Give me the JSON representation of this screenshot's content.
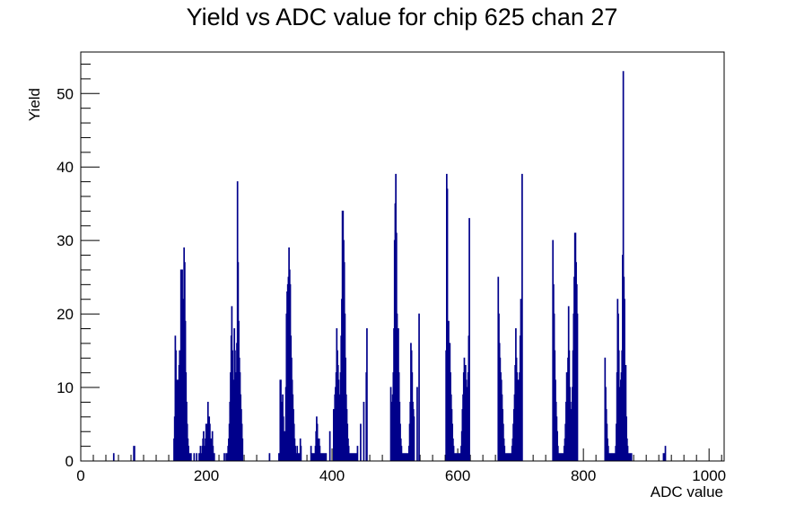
{
  "chart_data": {
    "type": "bar",
    "title": "Yield vs ADC value for chip 625 chan 27",
    "xlabel": "ADC value",
    "ylabel": "Yield",
    "xlim": [
      0,
      1024
    ],
    "ylim": [
      0,
      55.65
    ],
    "x_ticks": [
      0,
      200,
      400,
      600,
      800,
      1000
    ],
    "y_ticks": [
      0,
      10,
      20,
      30,
      40,
      50
    ],
    "grid": false,
    "legend": "none",
    "colors": {
      "series": "#00008b",
      "axis": "#000000",
      "background": "#ffffff"
    },
    "series": [
      {
        "bins_x": [
          52,
          84,
          85,
          148,
          149,
          150,
          151,
          152,
          153,
          154,
          155,
          156,
          157,
          158,
          159,
          160,
          161,
          162,
          163,
          164,
          165,
          166,
          167,
          168,
          169,
          170,
          171,
          172,
          173,
          175,
          180,
          184,
          188,
          190,
          192,
          193,
          194,
          195,
          196,
          197,
          198,
          199,
          200,
          201,
          202,
          203,
          204,
          205,
          206,
          207,
          208,
          209,
          210,
          211,
          212,
          228,
          231,
          233,
          234,
          235,
          236,
          237,
          238,
          239,
          240,
          241,
          242,
          243,
          244,
          245,
          246,
          247,
          248,
          249,
          250,
          251,
          252,
          253,
          254,
          255,
          256,
          257,
          300,
          315,
          316,
          317,
          318,
          319,
          320,
          321,
          322,
          323,
          324,
          325,
          326,
          327,
          328,
          329,
          330,
          331,
          332,
          333,
          334,
          335,
          336,
          337,
          338,
          339,
          340,
          341,
          342,
          343,
          344,
          345,
          346,
          347,
          348,
          349,
          350,
          366,
          367,
          368,
          369,
          370,
          371,
          372,
          373,
          374,
          375,
          376,
          377,
          378,
          379,
          380,
          381,
          382,
          383,
          384,
          385,
          386,
          387,
          388,
          389,
          390,
          396,
          402,
          404,
          405,
          406,
          407,
          408,
          409,
          410,
          411,
          412,
          413,
          414,
          415,
          416,
          417,
          418,
          419,
          420,
          421,
          422,
          423,
          424,
          425,
          426,
          427,
          428,
          429,
          430,
          431,
          432,
          433,
          434,
          435,
          436,
          437,
          438,
          439,
          440,
          445,
          450,
          454,
          455,
          493,
          494,
          495,
          496,
          497,
          498,
          499,
          500,
          501,
          502,
          503,
          504,
          505,
          506,
          507,
          508,
          509,
          510,
          511,
          512,
          513,
          514,
          515,
          516,
          517,
          518,
          519,
          520,
          521,
          522,
          523,
          524,
          525,
          526,
          527,
          528,
          529,
          530,
          535,
          538,
          581,
          582,
          583,
          584,
          585,
          586,
          587,
          588,
          589,
          590,
          591,
          592,
          593,
          594,
          595,
          596,
          597,
          598,
          599,
          600,
          601,
          602,
          603,
          604,
          605,
          606,
          607,
          608,
          609,
          610,
          611,
          612,
          613,
          614,
          615,
          616,
          617,
          618,
          664,
          665,
          666,
          667,
          668,
          669,
          670,
          671,
          672,
          673,
          674,
          675,
          676,
          677,
          678,
          679,
          680,
          681,
          682,
          683,
          684,
          685,
          686,
          687,
          688,
          689,
          690,
          691,
          692,
          693,
          694,
          695,
          696,
          697,
          698,
          699,
          700,
          702,
          751,
          752,
          753,
          754,
          755,
          756,
          757,
          758,
          759,
          760,
          761,
          762,
          763,
          764,
          765,
          766,
          767,
          768,
          769,
          770,
          771,
          772,
          773,
          774,
          775,
          776,
          777,
          778,
          779,
          780,
          781,
          782,
          783,
          784,
          785,
          786,
          787,
          788,
          789,
          790,
          834,
          835,
          836,
          837,
          838,
          839,
          840,
          841,
          842,
          843,
          844,
          845,
          846,
          847,
          848,
          849,
          850,
          851,
          852,
          853,
          854,
          855,
          856,
          857,
          858,
          859,
          860,
          861,
          862,
          863,
          864,
          865,
          866,
          867,
          868,
          869,
          870,
          871,
          872,
          873,
          874,
          875,
          876,
          927,
          928,
          929,
          930,
          931,
          932,
          933,
          934,
          935,
          936,
          937,
          938,
          939,
          940,
          941,
          942,
          943,
          944,
          945,
          946,
          947,
          948,
          949,
          950,
          951,
          952,
          953,
          954,
          955,
          956,
          957,
          958,
          998
        ],
        "values": [
          1,
          2,
          2,
          3,
          6,
          17,
          15,
          11,
          9,
          11,
          10,
          13,
          15,
          14,
          26,
          25,
          26,
          22,
          18,
          29,
          27,
          19,
          12,
          8,
          5,
          3,
          2,
          1,
          1,
          1,
          1,
          1,
          1,
          2,
          1,
          2,
          3,
          4,
          2,
          2,
          3,
          5,
          3,
          5,
          8,
          4,
          6,
          5,
          3,
          2,
          3,
          4,
          2,
          1,
          1,
          1,
          1,
          1,
          2,
          3,
          5,
          8,
          12,
          17,
          21,
          15,
          7,
          11,
          18,
          15,
          9,
          12,
          16,
          38,
          27,
          19,
          14,
          12,
          9,
          7,
          5,
          3,
          1,
          1,
          1,
          11,
          11,
          8,
          7,
          9,
          6,
          4,
          3,
          4,
          10,
          20,
          23,
          24,
          25,
          29,
          26,
          24,
          17,
          14,
          11,
          9,
          7,
          5,
          3,
          2,
          1,
          1,
          2,
          1,
          1,
          1,
          1,
          3,
          2,
          2,
          1,
          1,
          1,
          1,
          1,
          1,
          2,
          4,
          6,
          5,
          3,
          2,
          3,
          2,
          1,
          1,
          1,
          1,
          1,
          1,
          1,
          1,
          1,
          1,
          4,
          7,
          9,
          10,
          12,
          18,
          15,
          13,
          11,
          8,
          9,
          12,
          17,
          22,
          34,
          34,
          30,
          27,
          20,
          14,
          9,
          7,
          5,
          3,
          2,
          1,
          1,
          1,
          1,
          1,
          1,
          1,
          1,
          1,
          1,
          1,
          1,
          1,
          2,
          5,
          8,
          12,
          18,
          10,
          7,
          8,
          9,
          12,
          18,
          30,
          35,
          39,
          31,
          20,
          17,
          18,
          12,
          8,
          5,
          3,
          2,
          1,
          1,
          1,
          1,
          1,
          1,
          1,
          1,
          1,
          1,
          1,
          2,
          5,
          8,
          16,
          15,
          12,
          8,
          7,
          6,
          10,
          20,
          15,
          39,
          37,
          17,
          19,
          14,
          16,
          12,
          9,
          7,
          5,
          3,
          2,
          1,
          1,
          1,
          1,
          1,
          1,
          1,
          1,
          1,
          1,
          1,
          2,
          4,
          7,
          9,
          12,
          14,
          12,
          13,
          11,
          10,
          8,
          12,
          17,
          33,
          25,
          20,
          16,
          14,
          12,
          11,
          9,
          7,
          5,
          3,
          2,
          1,
          1,
          1,
          1,
          1,
          1,
          1,
          1,
          1,
          1,
          1,
          2,
          3,
          5,
          7,
          9,
          13,
          18,
          14,
          12,
          10,
          11,
          9,
          12,
          17,
          22,
          39,
          30,
          24,
          20,
          15,
          11,
          8,
          6,
          4,
          2,
          1,
          1,
          1,
          1,
          1,
          1,
          1,
          1,
          1,
          2,
          3,
          5,
          8,
          12,
          10,
          14,
          21,
          15,
          10,
          8,
          7,
          6,
          10,
          15,
          20,
          25,
          31,
          31,
          27,
          24,
          20,
          14,
          10,
          7,
          5,
          3,
          2,
          1,
          1,
          1,
          1,
          1,
          1,
          1,
          1,
          1,
          1,
          1,
          2,
          5,
          12,
          22,
          20,
          15,
          8,
          10,
          11,
          12,
          15,
          28,
          53,
          25,
          22,
          9,
          13,
          6,
          3,
          2,
          1,
          1,
          1,
          1,
          1,
          1,
          1,
          1,
          1,
          2
        ]
      }
    ]
  }
}
